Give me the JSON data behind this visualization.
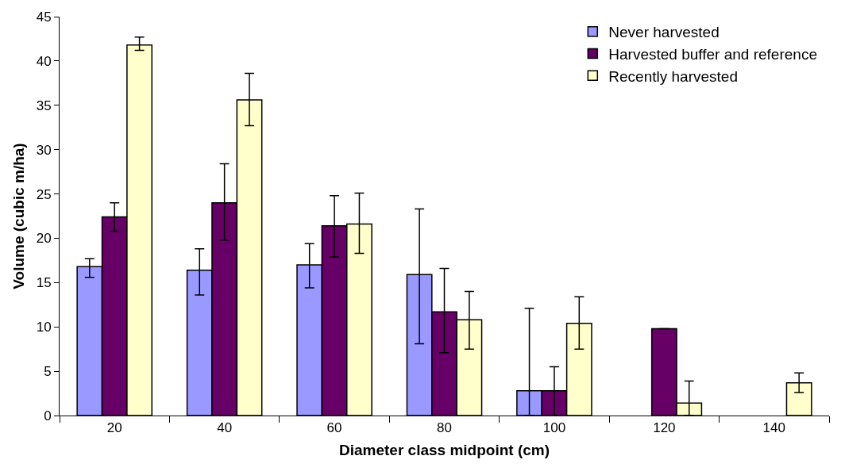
{
  "chart_data": {
    "type": "bar",
    "xlabel": "Diameter class midpoint (cm)",
    "ylabel": "Volume (cubic m/ha)",
    "categories": [
      "20",
      "40",
      "60",
      "80",
      "100",
      "120",
      "140"
    ],
    "series": [
      {
        "name": "Never harvested",
        "color": "#9999ff",
        "values": [
          16.8,
          16.4,
          17.0,
          15.9,
          2.8,
          null,
          null
        ],
        "errors": [
          [
            15.6,
            17.7
          ],
          [
            13.6,
            18.8
          ],
          [
            14.4,
            19.4
          ],
          [
            8.1,
            23.3
          ],
          [
            0,
            12.1
          ],
          null,
          null
        ]
      },
      {
        "name": "Harvested buffer and reference",
        "color": "#660066",
        "values": [
          22.4,
          24.0,
          21.4,
          11.7,
          2.8,
          9.8,
          null
        ],
        "errors": [
          [
            20.8,
            24.0
          ],
          [
            19.8,
            28.4
          ],
          [
            17.9,
            24.8
          ],
          [
            7.1,
            16.6
          ],
          [
            0,
            5.5
          ],
          null,
          null
        ]
      },
      {
        "name": "Recently harvested",
        "color": "#ffffcc",
        "values": [
          41.8,
          35.6,
          21.6,
          10.8,
          10.4,
          1.4,
          3.7
        ],
        "errors": [
          [
            41.2,
            42.7
          ],
          [
            32.7,
            38.6
          ],
          [
            18.3,
            25.1
          ],
          [
            7.5,
            14.0
          ],
          [
            7.5,
            13.4
          ],
          [
            0,
            3.9
          ],
          [
            2.6,
            4.8
          ]
        ]
      }
    ],
    "ylim": [
      0,
      45
    ],
    "yticks": [
      0,
      5,
      10,
      15,
      20,
      25,
      30,
      35,
      40,
      45
    ],
    "grid": false,
    "legend": "top right"
  }
}
